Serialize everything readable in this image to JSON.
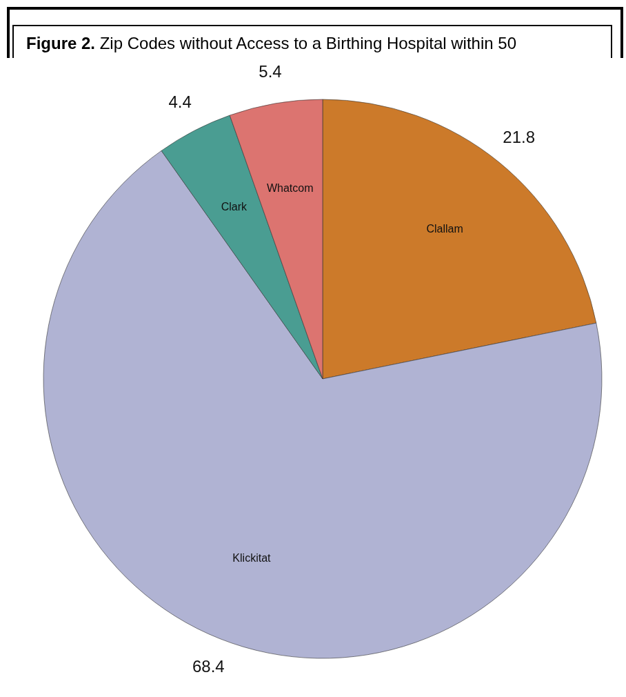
{
  "chart_data": {
    "type": "pie",
    "title": "Figure 2. Zip Codes without Access to a Birthing Hospital within 50",
    "categories": [
      "Clallam",
      "Klickitat",
      "Clark",
      "Whatcom"
    ],
    "values": [
      21.8,
      68.4,
      4.4,
      5.4
    ],
    "colors": [
      "#cc7a2a",
      "#b0b3d3",
      "#4a9d92",
      "#dc7470"
    ],
    "data_labels": true
  }
}
